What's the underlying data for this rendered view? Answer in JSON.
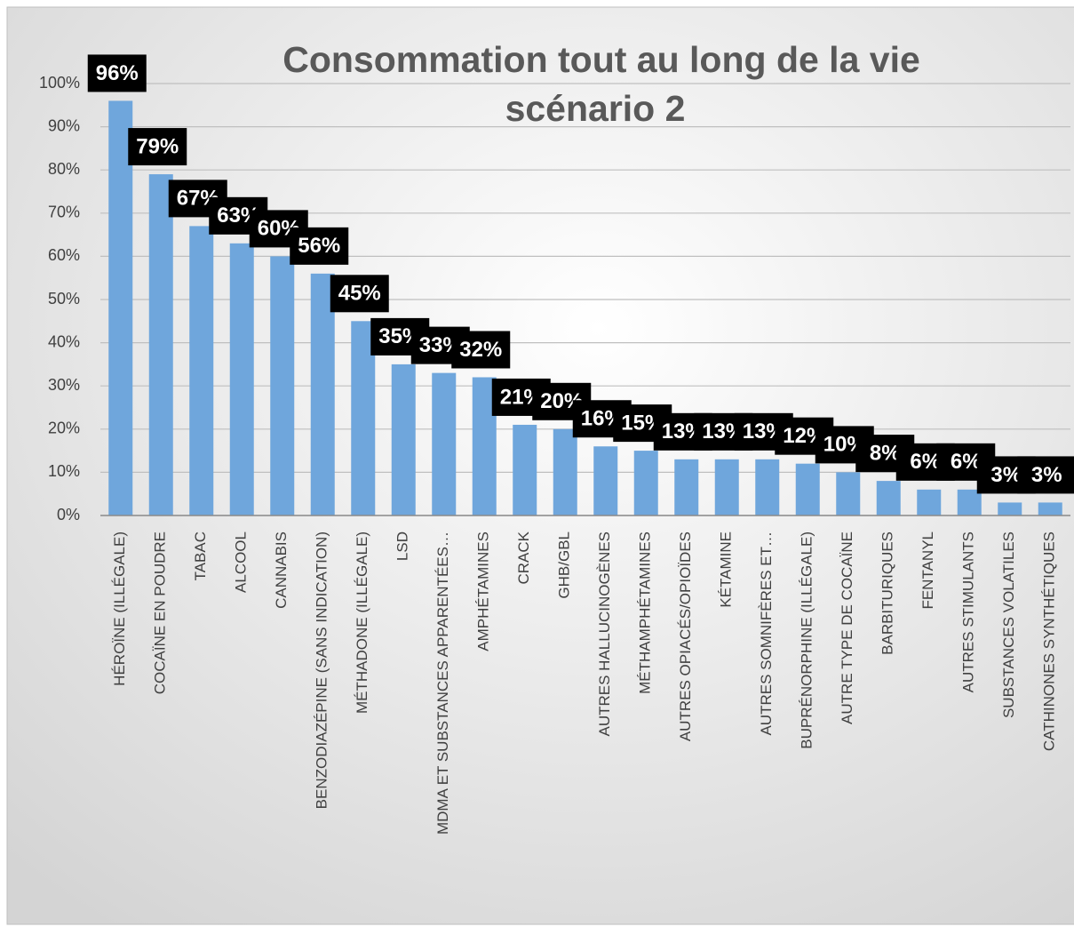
{
  "chart_data": {
    "type": "bar",
    "title": [
      "Consommation tout au long de la vie",
      "scénario 2"
    ],
    "categories": [
      "HÉROÏNE (ILLÉGALE)",
      "COCAÏNE EN POUDRE",
      "TABAC",
      "ALCOOL",
      "CANNABIS",
      "BENZODIAZÉPINE (SANS INDICATION)",
      "MÉTHADONE (ILLÉGALE)",
      "LSD",
      "MDMA ET SUBSTANCES APPARENTÉES…",
      "AMPHÉTAMINES",
      "CRACK",
      "GHB/GBL",
      "AUTRES HALLUCINOGÈNES",
      "MÉTHAMPHÉTAMINES",
      "AUTRES OPIACÉS/OPIOÏDES",
      "KÉTAMINE",
      "AUTRES SOMNIFÈRES ET…",
      "BUPRÉNORPHINE (ILLÉGALE)",
      "AUTRE TYPE DE COCAÏNE",
      "BARBITURIQUES",
      "FENTANYL",
      "AUTRES STIMULANTS",
      "SUBSTANCES VOLATILES",
      "CATHINONES SYNTHÉTIQUES"
    ],
    "values": [
      96,
      79,
      67,
      63,
      60,
      56,
      45,
      35,
      33,
      32,
      21,
      20,
      16,
      15,
      13,
      13,
      13,
      12,
      10,
      8,
      6,
      6,
      3,
      3
    ],
    "value_labels": [
      "96%",
      "79%",
      "67%",
      "63%",
      "60%",
      "56%",
      "45%",
      "35%",
      "33%",
      "32%",
      "21%",
      "20%",
      "16%",
      "15%",
      "13%",
      "13%",
      "13%",
      "12%",
      "10%",
      "8%",
      "6%",
      "6%",
      "3%",
      "3%"
    ],
    "color": "#6fa6dc",
    "ylim": [
      0,
      100
    ],
    "yticks": [
      {
        "value": 0,
        "label": "0%"
      },
      {
        "value": 10,
        "label": "10%"
      },
      {
        "value": 20,
        "label": "20%"
      },
      {
        "value": 30,
        "label": "30%"
      },
      {
        "value": 40,
        "label": "40%"
      },
      {
        "value": 50,
        "label": "50%"
      },
      {
        "value": 60,
        "label": "60%"
      },
      {
        "value": 70,
        "label": "70%"
      },
      {
        "value": 80,
        "label": "80%"
      },
      {
        "value": 90,
        "label": "90%"
      },
      {
        "value": 100,
        "label": "100%"
      }
    ],
    "grid": true
  }
}
